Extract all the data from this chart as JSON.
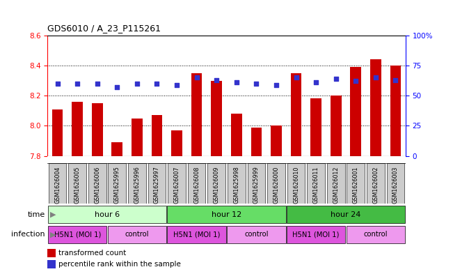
{
  "title": "GDS6010 / A_23_P115261",
  "samples": [
    "GSM1626004",
    "GSM1626005",
    "GSM1626006",
    "GSM1625995",
    "GSM1625996",
    "GSM1625997",
    "GSM1626007",
    "GSM1626008",
    "GSM1626009",
    "GSM1625998",
    "GSM1625999",
    "GSM1626000",
    "GSM1626010",
    "GSM1626011",
    "GSM1626012",
    "GSM1626001",
    "GSM1626002",
    "GSM1626003"
  ],
  "transformed_counts": [
    8.11,
    8.16,
    8.15,
    7.89,
    8.05,
    8.07,
    7.97,
    8.35,
    8.3,
    8.08,
    7.99,
    8.0,
    8.35,
    8.18,
    8.2,
    8.39,
    8.44,
    8.4
  ],
  "percentile_ranks": [
    60,
    60,
    60,
    57,
    60,
    60,
    59,
    65,
    63,
    61,
    60,
    59,
    65,
    61,
    64,
    62,
    65,
    63
  ],
  "bar_bottom": 7.8,
  "ylim_left": [
    7.8,
    8.6
  ],
  "ylim_right": [
    0,
    100
  ],
  "yticks_left": [
    7.8,
    8.0,
    8.2,
    8.4,
    8.6
  ],
  "yticks_right": [
    0,
    25,
    50,
    75,
    100
  ],
  "bar_color": "#cc0000",
  "dot_color": "#3333cc",
  "time_groups": [
    {
      "label": "hour 6",
      "start": 0,
      "end": 6,
      "color": "#ccffcc"
    },
    {
      "label": "hour 12",
      "start": 6,
      "end": 12,
      "color": "#66dd66"
    },
    {
      "label": "hour 24",
      "start": 12,
      "end": 18,
      "color": "#44bb44"
    }
  ],
  "inf_groups": [
    {
      "label": "H5N1 (MOI 1)",
      "start": 0,
      "end": 3,
      "color": "#dd55dd"
    },
    {
      "label": "control",
      "start": 3,
      "end": 6,
      "color": "#ee99ee"
    },
    {
      "label": "H5N1 (MOI 1)",
      "start": 6,
      "end": 9,
      "color": "#dd55dd"
    },
    {
      "label": "control",
      "start": 9,
      "end": 12,
      "color": "#ee99ee"
    },
    {
      "label": "H5N1 (MOI 1)",
      "start": 12,
      "end": 15,
      "color": "#dd55dd"
    },
    {
      "label": "control",
      "start": 15,
      "end": 18,
      "color": "#ee99ee"
    }
  ],
  "sample_label_color": "#888888",
  "sample_box_color": "#cccccc",
  "background_color": "#ffffff"
}
